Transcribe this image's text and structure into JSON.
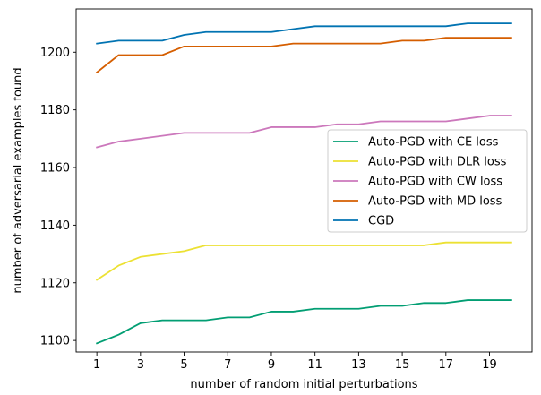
{
  "chart_data": {
    "type": "line",
    "title": "",
    "xlabel": "number of random initial perturbations",
    "ylabel": "number of adversarial examples found",
    "xlim": [
      0.05,
      20.95
    ],
    "ylim": [
      1096,
      1215
    ],
    "xticks": [
      1,
      3,
      5,
      7,
      9,
      11,
      13,
      15,
      17,
      19
    ],
    "yticks": [
      1100,
      1120,
      1140,
      1160,
      1180,
      1200
    ],
    "grid": false,
    "legend_position": "center-right",
    "x": [
      1,
      2,
      3,
      4,
      5,
      6,
      7,
      8,
      9,
      10,
      11,
      12,
      13,
      14,
      15,
      16,
      17,
      18,
      19,
      20
    ],
    "series": [
      {
        "name": "Auto-PGD with CE loss",
        "color": "#029e73",
        "values": [
          1099,
          1102,
          1106,
          1107,
          1107,
          1107,
          1108,
          1108,
          1110,
          1110,
          1111,
          1111,
          1111,
          1112,
          1112,
          1113,
          1113,
          1114,
          1114,
          1114
        ]
      },
      {
        "name": "Auto-PGD with DLR loss",
        "color": "#ece133",
        "values": [
          1121,
          1126,
          1129,
          1130,
          1131,
          1133,
          1133,
          1133,
          1133,
          1133,
          1133,
          1133,
          1133,
          1133,
          1133,
          1133,
          1134,
          1134,
          1134,
          1134
        ]
      },
      {
        "name": "Auto-PGD with CW loss",
        "color": "#cc78bc",
        "values": [
          1167,
          1169,
          1170,
          1171,
          1172,
          1172,
          1172,
          1172,
          1174,
          1174,
          1174,
          1175,
          1175,
          1176,
          1176,
          1176,
          1176,
          1177,
          1178,
          1178
        ]
      },
      {
        "name": "Auto-PGD with MD loss",
        "color": "#d55e00",
        "values": [
          1193,
          1199,
          1199,
          1199,
          1202,
          1202,
          1202,
          1202,
          1202,
          1203,
          1203,
          1203,
          1203,
          1203,
          1204,
          1204,
          1205,
          1205,
          1205,
          1205
        ]
      },
      {
        "name": "CGD",
        "color": "#0173b2",
        "values": [
          1203,
          1204,
          1204,
          1204,
          1206,
          1207,
          1207,
          1207,
          1207,
          1208,
          1209,
          1209,
          1209,
          1209,
          1209,
          1209,
          1209,
          1210,
          1210,
          1210
        ]
      }
    ]
  }
}
